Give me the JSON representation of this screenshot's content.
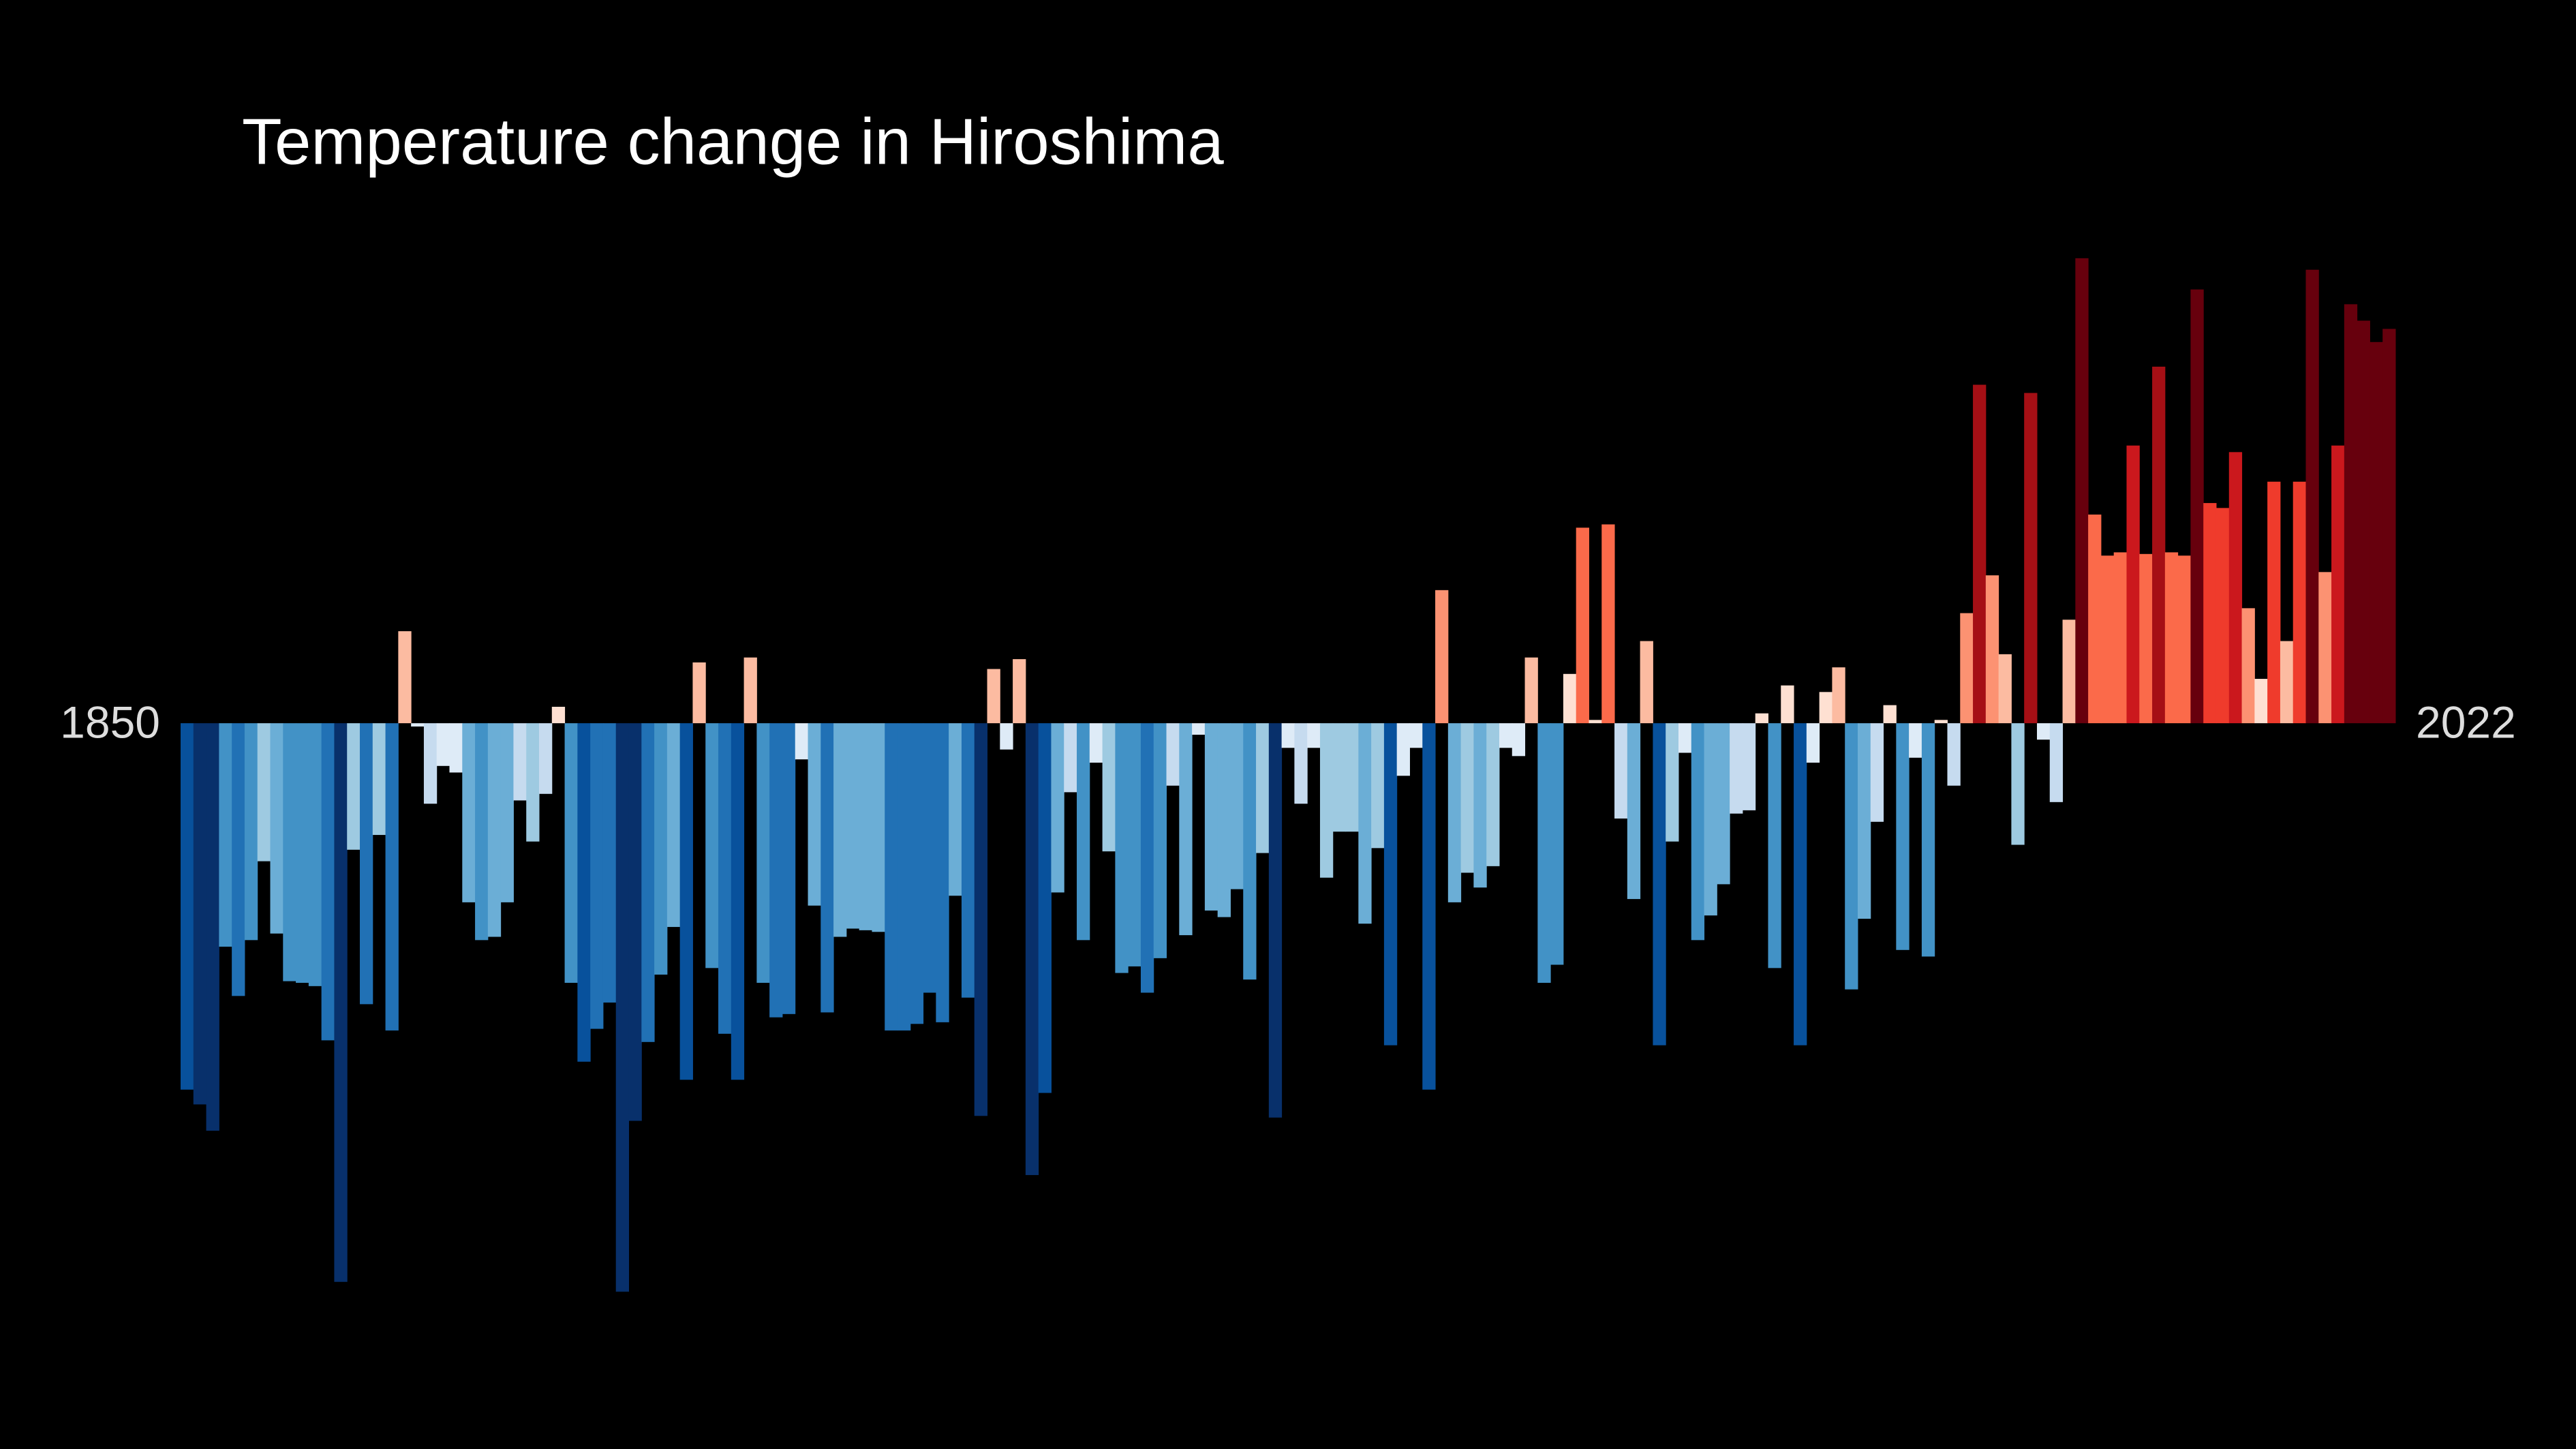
{
  "chart_data": {
    "type": "bar",
    "title": "Temperature change in Hiroshima",
    "x": [
      1850,
      1851,
      1852,
      1853,
      1854,
      1855,
      1856,
      1857,
      1858,
      1859,
      1860,
      1861,
      1862,
      1863,
      1864,
      1865,
      1866,
      1867,
      1868,
      1869,
      1870,
      1871,
      1872,
      1873,
      1874,
      1875,
      1876,
      1877,
      1878,
      1879,
      1880,
      1881,
      1882,
      1883,
      1884,
      1885,
      1886,
      1887,
      1888,
      1889,
      1890,
      1891,
      1892,
      1893,
      1894,
      1895,
      1896,
      1897,
      1898,
      1899,
      1900,
      1901,
      1902,
      1903,
      1904,
      1905,
      1906,
      1907,
      1908,
      1909,
      1910,
      1911,
      1912,
      1913,
      1914,
      1915,
      1916,
      1917,
      1918,
      1919,
      1920,
      1921,
      1922,
      1923,
      1924,
      1925,
      1926,
      1927,
      1928,
      1929,
      1930,
      1931,
      1932,
      1933,
      1934,
      1935,
      1936,
      1937,
      1938,
      1939,
      1940,
      1941,
      1942,
      1943,
      1944,
      1945,
      1946,
      1947,
      1948,
      1949,
      1950,
      1951,
      1952,
      1953,
      1954,
      1955,
      1956,
      1957,
      1958,
      1959,
      1960,
      1961,
      1962,
      1963,
      1964,
      1965,
      1966,
      1967,
      1968,
      1969,
      1970,
      1971,
      1972,
      1973,
      1974,
      1975,
      1976,
      1977,
      1978,
      1979,
      1980,
      1981,
      1982,
      1983,
      1984,
      1985,
      1986,
      1987,
      1988,
      1989,
      1990,
      1991,
      1992,
      1993,
      1994,
      1995,
      1996,
      1997,
      1998,
      1999,
      2000,
      2001,
      2002,
      2003,
      2004,
      2005,
      2006,
      2007,
      2008,
      2009,
      2010,
      2011,
      2012,
      2013,
      2014,
      2015,
      2016,
      2017,
      2018,
      2019,
      2020,
      2021,
      2022
    ],
    "values": [
      -2.23,
      -2.32,
      -2.48,
      -1.36,
      -1.66,
      -1.32,
      -0.84,
      -1.28,
      -1.57,
      -1.58,
      -1.6,
      -1.93,
      -3.4,
      -0.77,
      -1.71,
      -0.68,
      -1.87,
      0.56,
      -0.02,
      -0.49,
      -0.26,
      -0.3,
      -1.09,
      -1.32,
      -1.3,
      -1.09,
      -0.47,
      -0.72,
      -0.43,
      0.1,
      -1.58,
      -2.06,
      -1.86,
      -1.7,
      -3.46,
      -2.42,
      -1.94,
      -1.53,
      -1.24,
      -2.17,
      0.37,
      -1.49,
      -1.89,
      -2.17,
      0.4,
      -1.58,
      -1.79,
      -1.77,
      -0.22,
      -1.11,
      -1.76,
      -1.3,
      -1.25,
      -1.26,
      -1.27,
      -1.87,
      -1.87,
      -1.83,
      -1.64,
      -1.82,
      -1.05,
      -1.67,
      -2.39,
      0.33,
      -0.16,
      0.39,
      -2.75,
      -2.25,
      -1.03,
      -0.42,
      -1.32,
      -0.24,
      -0.78,
      -1.52,
      -1.48,
      -1.64,
      -1.43,
      -0.38,
      -1.29,
      -0.07,
      -1.14,
      -1.18,
      -1.01,
      -1.56,
      -0.79,
      -2.4,
      -0.15,
      -0.49,
      -0.15,
      -0.94,
      -0.66,
      -0.66,
      -1.22,
      -0.76,
      -1.96,
      -0.32,
      -0.15,
      -2.23,
      0.81,
      -1.09,
      -0.91,
      -1.0,
      -0.87,
      -0.15,
      -0.2,
      0.4,
      -1.58,
      -1.47,
      0.3,
      1.19,
      0.02,
      1.21,
      -0.58,
      -1.07,
      0.5,
      -1.96,
      -0.72,
      -0.18,
      -1.32,
      -1.17,
      -0.98,
      -0.55,
      -0.53,
      0.06,
      -1.49,
      0.23,
      -1.96,
      -0.24,
      0.19,
      0.34,
      -1.62,
      -1.19,
      -0.6,
      0.11,
      -1.38,
      -0.21,
      -1.42,
      0.02,
      -0.38,
      0.67,
      2.06,
      0.9,
      0.42,
      -0.74,
      2.01,
      -0.1,
      -0.48,
      0.63,
      2.83,
      1.27,
      1.02,
      1.04,
      1.69,
      1.03,
      2.17,
      1.04,
      1.02,
      2.64,
      1.34,
      1.31,
      1.65,
      0.7,
      0.27,
      1.47,
      0.5,
      1.47,
      2.76,
      0.92,
      1.69,
      2.55,
      2.45,
      2.32,
      2.4
    ],
    "xlim": [
      1849.5,
      2022.5
    ],
    "xticks": [
      1850,
      2022
    ],
    "ylim": [
      -3.6,
      2.9
    ],
    "colormap": [
      "#08306b",
      "#08519c",
      "#2171b5",
      "#4292c6",
      "#6baed6",
      "#9ecae1",
      "#c6dbef",
      "#deebf7",
      "#fee0d2",
      "#fcbba1",
      "#fc9272",
      "#fb6a4a",
      "#ef3b2c",
      "#cb181d",
      "#a50f15",
      "#67000d"
    ],
    "clim": [
      -2.6,
      2.6
    ]
  }
}
